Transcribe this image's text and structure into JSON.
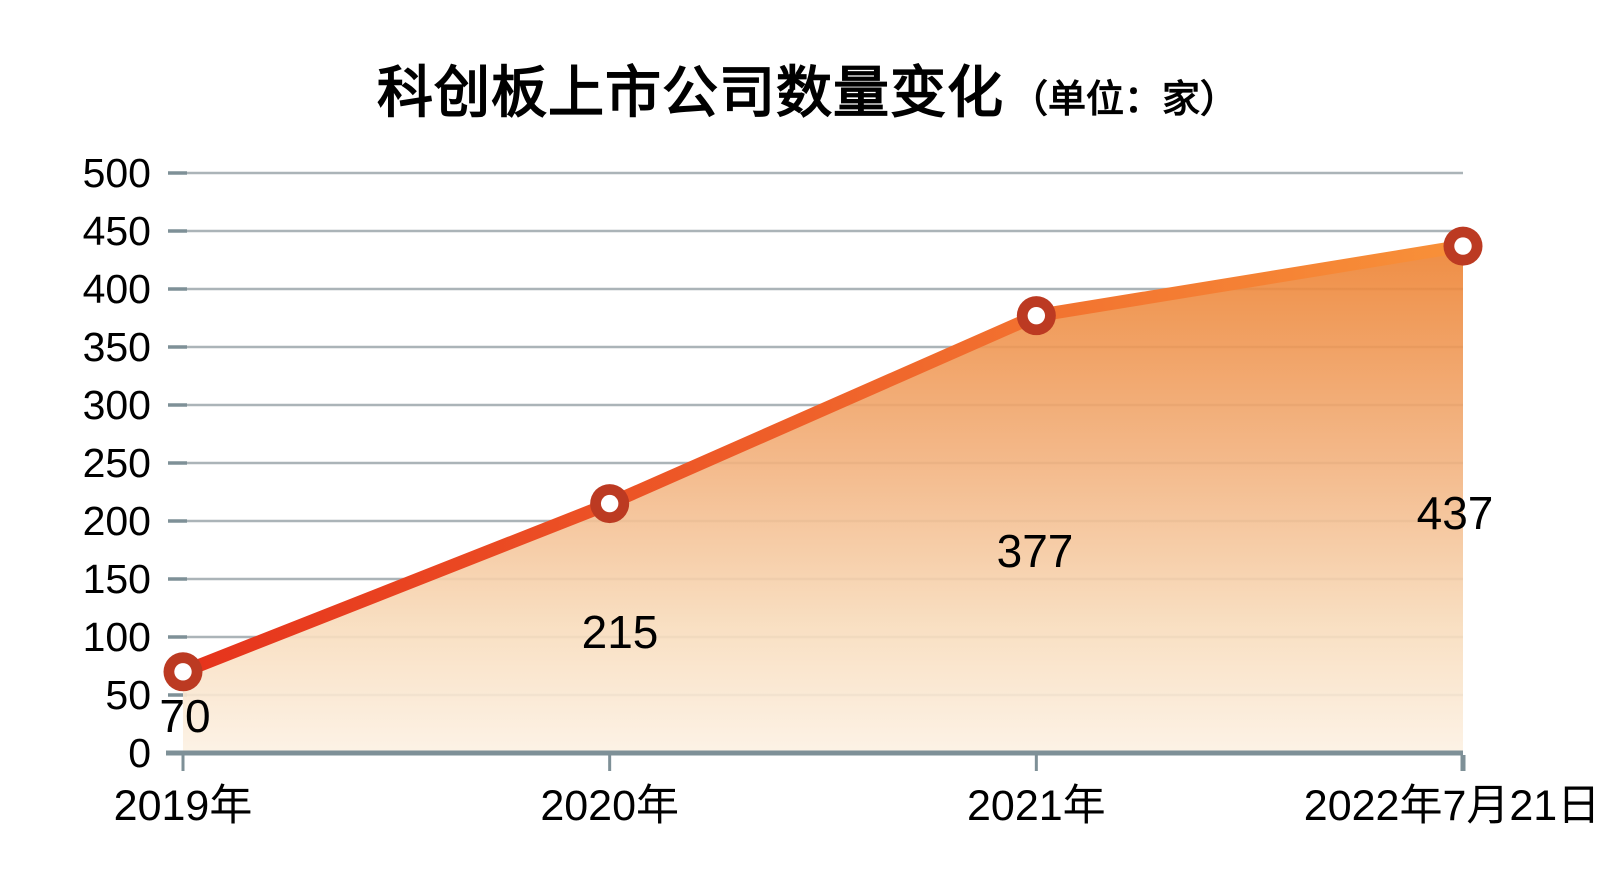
{
  "window": {
    "background": "#FFFFFF"
  },
  "header": {
    "title": "科创板上市公司数量变化",
    "unit_label": "（单位：家）"
  },
  "chart_data": {
    "type": "area",
    "title": "科创板上市公司数量变化",
    "unit_label": "（单位：家）",
    "categories": [
      "2019年",
      "2020年",
      "2021年",
      "2022年7月21日"
    ],
    "values": [
      70,
      215,
      377,
      437
    ],
    "data_labels": [
      "70",
      "215",
      "377",
      "437"
    ],
    "xlabel": "",
    "ylabel": "",
    "ylim": [
      0,
      500
    ],
    "ytick_step": 50,
    "ytick_labels": [
      "0",
      "50",
      "100",
      "150",
      "200",
      "250",
      "300",
      "350",
      "400",
      "450",
      "500"
    ],
    "grid": true,
    "legend": "none",
    "colors": {
      "line_gradient_start": "#E6331C",
      "line_gradient_end": "#F89139",
      "marker_ring": "#BC3A22",
      "marker_hole": "#FFFFFF",
      "area_gradient": [
        "#ED8130",
        "#F2B17D",
        "#F8DCBC",
        "#FCF1E3"
      ],
      "gridline": "#ABB4B8",
      "axis": "#7E9097",
      "text": "#000000"
    }
  }
}
